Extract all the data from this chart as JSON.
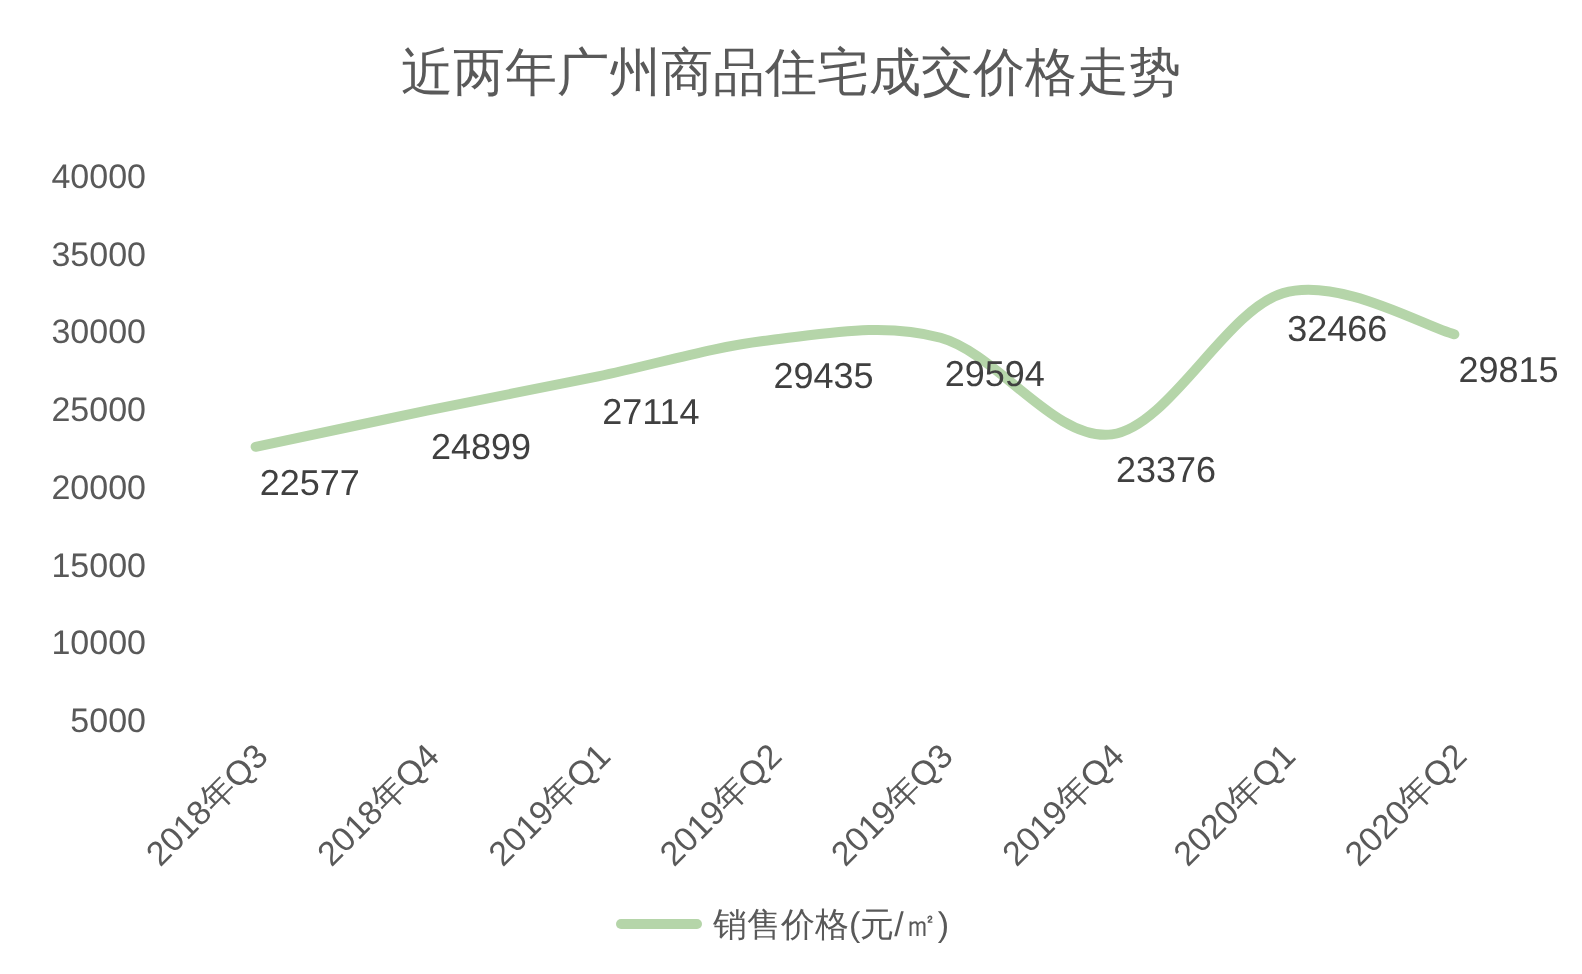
{
  "chart_data": {
    "type": "line",
    "title": "近两年广州商品住宅成交价格走势",
    "categories": [
      "2018年Q3",
      "2018年Q4",
      "2019年Q1",
      "2019年Q2",
      "2019年Q3",
      "2019年Q4",
      "2020年Q1",
      "2020年Q2"
    ],
    "series": [
      {
        "name": "销售价格(元/㎡)",
        "color": "#b5d5a9",
        "values": [
          22577,
          24899,
          27114,
          29435,
          29594,
          23376,
          32466,
          29815
        ]
      }
    ],
    "ylim": [
      5000,
      40000
    ],
    "yticks": [
      5000,
      10000,
      15000,
      20000,
      25000,
      30000,
      35000,
      40000
    ],
    "data_labels": true,
    "legend": "bottom",
    "marker": "none",
    "line_style": "solid"
  }
}
